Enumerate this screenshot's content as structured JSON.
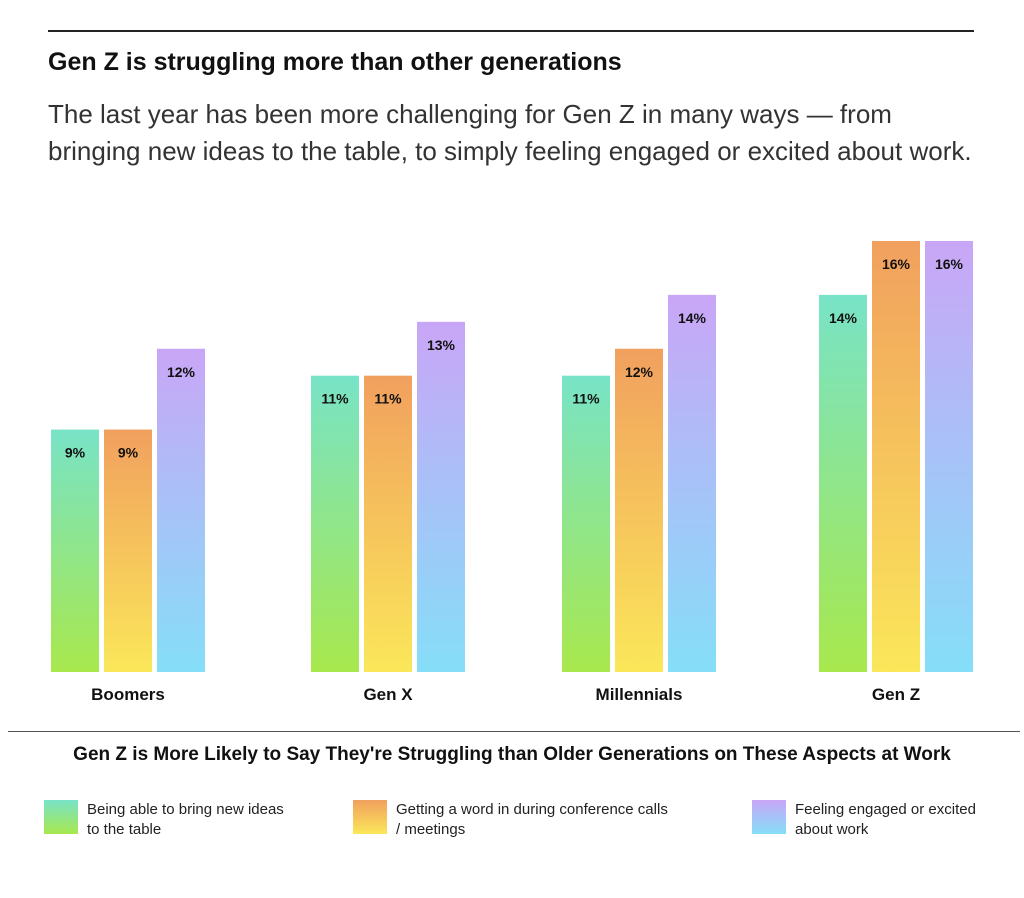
{
  "header": {
    "title": "Gen Z is struggling more than other generations",
    "subtitle": "The last year has been more challenging for Gen Z in many ways — from bringing new ideas to the table, to simply feeling engaged or excited about work."
  },
  "chart_data": {
    "type": "bar",
    "title": "Gen Z is More Likely to Say They're Struggling than Older Generations on These Aspects at  Work",
    "categories": [
      "Boomers",
      "Gen X",
      "Millennials",
      "Gen Z"
    ],
    "series": [
      {
        "name": "Being able to bring new ideas to the table",
        "values": [
          9,
          11,
          11,
          14
        ],
        "gradient": [
          "#78e3c7",
          "#a8e84d"
        ]
      },
      {
        "name": "Getting a word in during conference calls / meetings",
        "values": [
          9,
          11,
          12,
          16
        ],
        "gradient": [
          "#f1a05e",
          "#fbe75a"
        ]
      },
      {
        "name": "Feeling engaged or excited about work",
        "values": [
          12,
          13,
          14,
          16
        ],
        "gradient": [
          "#c9a6f7",
          "#85def8"
        ]
      }
    ],
    "value_suffix": "%",
    "ylim": [
      0,
      16
    ],
    "xlabel": "",
    "ylabel": "",
    "legend_position": "bottom"
  }
}
